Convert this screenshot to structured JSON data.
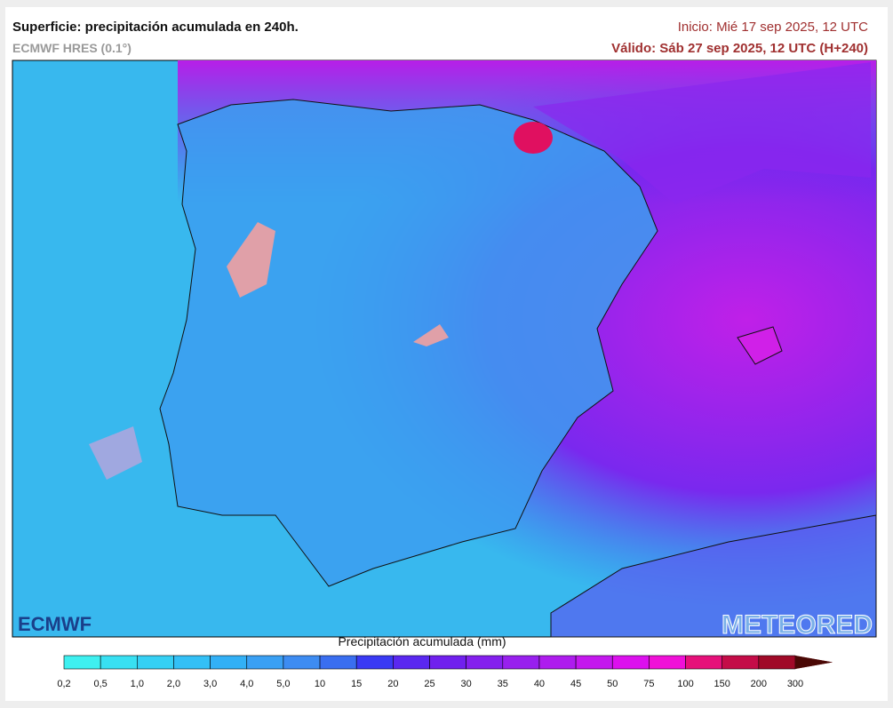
{
  "header": {
    "title": "Superficie: precipitación acumulada en 240h.",
    "model": "ECMWF HRES (0.1°)",
    "start": "Inicio: Mié 17 sep 2025, 12 UTC",
    "valid": "Válido: Sáb 27 sep 2025, 12 UTC (H+240)"
  },
  "map": {
    "logo_left": "ECMWF",
    "logo_right": "METEORED"
  },
  "legend": {
    "title": "Precipitación acumulada (mm)",
    "labels": [
      "0,2",
      "0,5",
      "1,0",
      "2,0",
      "3,0",
      "4,0",
      "5,0",
      "10",
      "15",
      "20",
      "25",
      "30",
      "35",
      "40",
      "45",
      "50",
      "75",
      "100",
      "150",
      "200",
      "300"
    ],
    "colors": [
      "#3ef0f0",
      "#38e0f2",
      "#35d0f4",
      "#33c0f6",
      "#32b0f6",
      "#3aa0f4",
      "#3d8cf2",
      "#3a6ef0",
      "#3a3af4",
      "#5a28f0",
      "#7020ee",
      "#8420ee",
      "#9820ee",
      "#ae1cee",
      "#c418ee",
      "#dc10ee",
      "#f010d8",
      "#e6107a",
      "#c40c48",
      "#a00a28",
      "#7a0810",
      "#4a0805"
    ]
  }
}
